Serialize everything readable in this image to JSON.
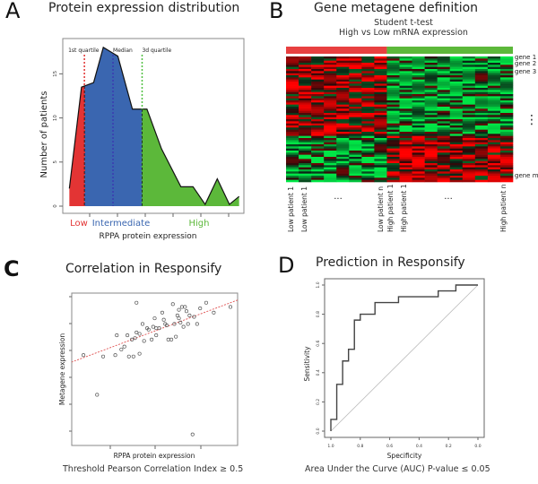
{
  "panels": {
    "A": {
      "letter": "A",
      "title": "Protein expression distribution"
    },
    "B": {
      "letter": "B",
      "title": "Gene metagene definition",
      "subtitle1": "Student t-test",
      "subtitle2": "High vs Low mRNA expression"
    },
    "C": {
      "letter": "C",
      "title": "Correlation in Responsify",
      "caption": "Threshold Pearson Correlation Index ≥ 0.5"
    },
    "D": {
      "letter": "D",
      "title": "Prediction in Responsify",
      "caption": "Area Under the Curve (AUC) P-value  ≤ 0.05"
    }
  },
  "chart_data": [
    {
      "id": "A",
      "type": "area",
      "title": "Protein expression distribution",
      "xlabel": "RPPA protein expression",
      "ylabel": "Number of patients",
      "ylim": [
        0,
        19
      ],
      "yticks": [
        0,
        5,
        10,
        15
      ],
      "x": [
        0,
        1,
        2,
        3,
        4,
        5,
        6,
        7,
        8,
        9,
        10,
        11,
        12,
        13,
        14,
        15
      ],
      "values": [
        2,
        13.5,
        18,
        17,
        11,
        11,
        6.5,
        2,
        2,
        0,
        3,
        0,
        1,
        1,
        1,
        1
      ],
      "points": [
        [
          0,
          2
        ],
        [
          0.5,
          13.5
        ],
        [
          1,
          14
        ],
        [
          1.4,
          18
        ],
        [
          2,
          17
        ],
        [
          2.6,
          11
        ],
        [
          3.2,
          11
        ],
        [
          3.8,
          6.5
        ],
        [
          4.6,
          2.2
        ],
        [
          5.1,
          2.2
        ],
        [
          5.6,
          0.2
        ],
        [
          6.1,
          3.1
        ],
        [
          6.6,
          0.2
        ],
        [
          7,
          1.1
        ]
      ],
      "xlim": [
        0,
        7
      ],
      "quartiles": [
        {
          "label": "1st quartile",
          "x": 0.62,
          "color": "#e03030"
        },
        {
          "label": "Median",
          "x": 1.8,
          "color": "#3a3ab0"
        },
        {
          "label": "3d quartile",
          "x": 3.0,
          "color": "#50c040"
        }
      ],
      "groups": [
        {
          "label": "Low",
          "color": "#e33434"
        },
        {
          "label": "Intermediate",
          "color": "#3a66b0"
        },
        {
          "label": "High",
          "color": "#5cb83a"
        }
      ]
    },
    {
      "id": "B",
      "type": "heatmap",
      "title": "Gene metagene definition",
      "subtitle": "Student t-test High vs Low mRNA expression",
      "group_bar": [
        {
          "label": "Low",
          "color": "#e84040",
          "columns": 8
        },
        {
          "label": "High",
          "color": "#5cb83a",
          "columns": 10
        }
      ],
      "row_labels": [
        "gene 1",
        "gene 2",
        "gene 3",
        "⋮",
        "gene m"
      ],
      "column_labels": [
        "Low patient 1",
        "Low patient 1",
        "...",
        "Low patient n",
        "High patient 1",
        "High patient 1",
        "...",
        "High patient n"
      ],
      "rows": 60,
      "columns": 18,
      "color_low": "#00ff44",
      "color_mid": "#000000",
      "color_high": "#ff2020"
    },
    {
      "id": "C",
      "type": "scatter",
      "title": "Correlation in Responsify",
      "xlabel": "RPPA protein expression",
      "ylabel": "Metagene expression",
      "xlim": [
        0,
        10
      ],
      "ylim": [
        0,
        10
      ],
      "points": [
        [
          0.3,
          6.0
        ],
        [
          1.2,
          3.2
        ],
        [
          1.6,
          5.9
        ],
        [
          2.4,
          6.0
        ],
        [
          2.5,
          7.4
        ],
        [
          2.8,
          6.4
        ],
        [
          3.0,
          6.6
        ],
        [
          3.2,
          7.4
        ],
        [
          3.3,
          5.9
        ],
        [
          3.5,
          7.1
        ],
        [
          3.8,
          7.6
        ],
        [
          3.6,
          5.9
        ],
        [
          3.7,
          7.2
        ],
        [
          3.8,
          9.7
        ],
        [
          4.0,
          7.5
        ],
        [
          4.2,
          8.2
        ],
        [
          4.3,
          7.0
        ],
        [
          4.5,
          7.9
        ],
        [
          4.6,
          7.8
        ],
        [
          4.8,
          7.1
        ],
        [
          4.9,
          8.0
        ],
        [
          5.0,
          8.6
        ],
        [
          5.1,
          7.9
        ],
        [
          5.1,
          7.4
        ],
        [
          5.3,
          7.9
        ],
        [
          5.5,
          9.0
        ],
        [
          5.6,
          8.5
        ],
        [
          5.7,
          8.2
        ],
        [
          5.8,
          8.1
        ],
        [
          5.9,
          7.1
        ],
        [
          6.1,
          7.1
        ],
        [
          6.2,
          9.6
        ],
        [
          6.3,
          8.2
        ],
        [
          6.4,
          7.3
        ],
        [
          6.5,
          8.8
        ],
        [
          6.6,
          9.2
        ],
        [
          6.6,
          8.6
        ],
        [
          6.7,
          8.3
        ],
        [
          6.8,
          9.4
        ],
        [
          6.9,
          8.0
        ],
        [
          7.0,
          9.4
        ],
        [
          7.1,
          9.1
        ],
        [
          7.2,
          8.2
        ],
        [
          7.3,
          8.8
        ],
        [
          7.6,
          8.7
        ],
        [
          7.8,
          8.2
        ],
        [
          8.0,
          9.3
        ],
        [
          8.4,
          9.7
        ],
        [
          8.9,
          9.0
        ],
        [
          10.0,
          9.4
        ],
        [
          7.5,
          0.4
        ],
        [
          4.0,
          6.1
        ]
      ],
      "fit_line": [
        [
          -0.5,
          5.5
        ],
        [
          10.5,
          9.9
        ]
      ]
    },
    {
      "id": "D",
      "type": "line",
      "title": "Prediction in Responsify",
      "xlabel": "Specificity",
      "ylabel": "Sensitivity",
      "xlim": [
        1.0,
        0.0
      ],
      "ylim": [
        0.0,
        1.0
      ],
      "xticks": [
        "1.0",
        "0.8",
        "0.6",
        "0.4",
        "0.2",
        "0.0"
      ],
      "yticks": [
        "0.0",
        "0.2",
        "0.4",
        "0.6",
        "0.8",
        "1.0"
      ],
      "roc": [
        [
          1.0,
          0.0
        ],
        [
          1.0,
          0.08
        ],
        [
          0.96,
          0.08
        ],
        [
          0.96,
          0.32
        ],
        [
          0.92,
          0.32
        ],
        [
          0.92,
          0.48
        ],
        [
          0.88,
          0.48
        ],
        [
          0.88,
          0.56
        ],
        [
          0.84,
          0.56
        ],
        [
          0.84,
          0.76
        ],
        [
          0.8,
          0.76
        ],
        [
          0.8,
          0.8
        ],
        [
          0.7,
          0.8
        ],
        [
          0.7,
          0.88
        ],
        [
          0.54,
          0.88
        ],
        [
          0.54,
          0.92
        ],
        [
          0.27,
          0.92
        ],
        [
          0.27,
          0.96
        ],
        [
          0.15,
          0.96
        ],
        [
          0.15,
          1.0
        ],
        [
          0.0,
          1.0
        ]
      ],
      "diagonal": [
        [
          1.0,
          0.0
        ],
        [
          0.0,
          1.0
        ]
      ]
    }
  ]
}
